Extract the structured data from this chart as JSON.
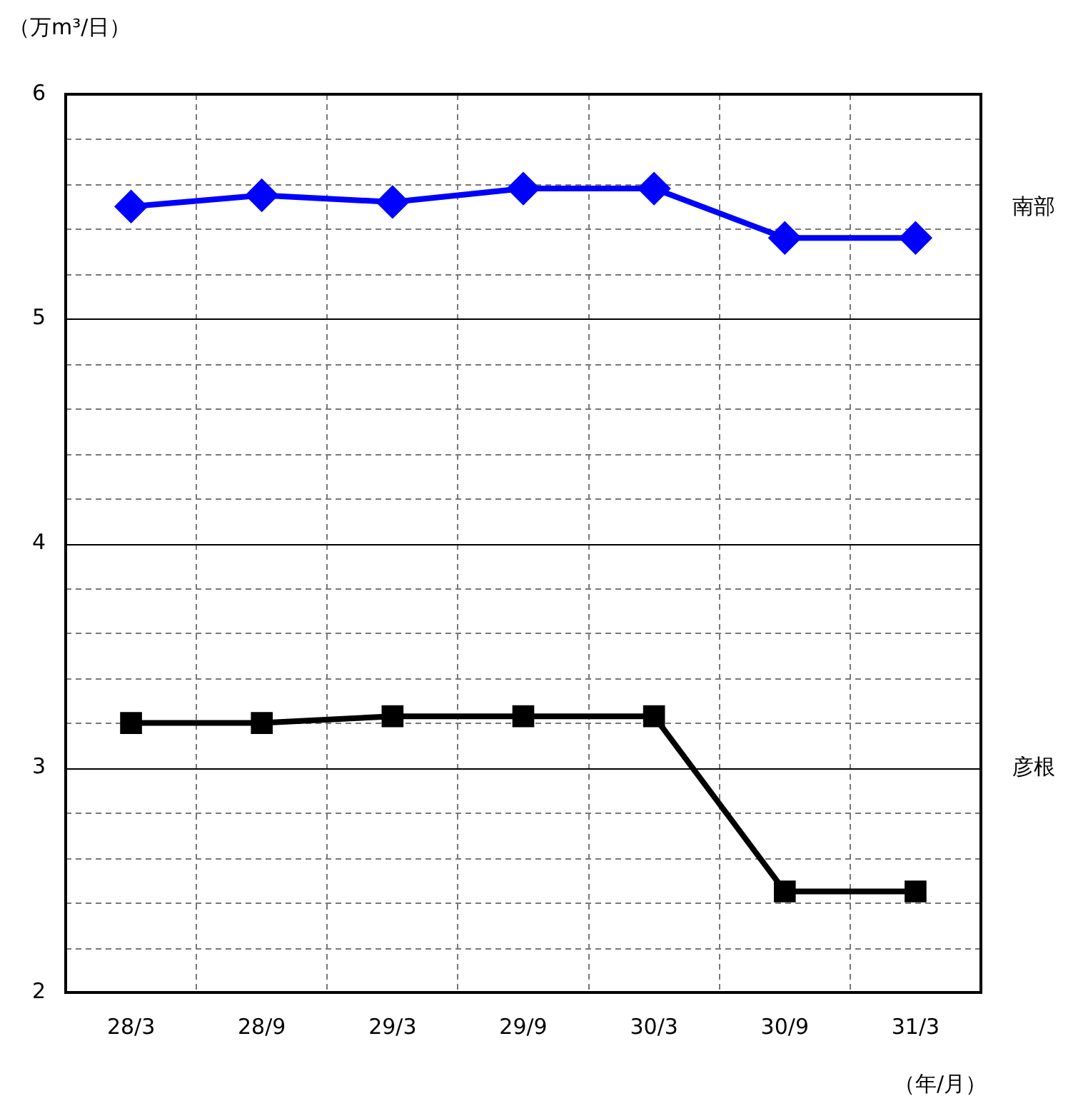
{
  "chart_data": {
    "type": "line",
    "ylabel": "（万m³/日）",
    "xlabel": "（年/月）",
    "categories": [
      "28/3",
      "28/9",
      "29/3",
      "29/9",
      "30/3",
      "30/9",
      "31/3"
    ],
    "series": [
      {
        "name": "南部",
        "color": "#0000ff",
        "marker": "diamond",
        "values": [
          5.5,
          5.55,
          5.52,
          5.58,
          5.58,
          5.36,
          5.36
        ]
      },
      {
        "name": "彦根",
        "color": "#000000",
        "marker": "square",
        "values": [
          3.2,
          3.2,
          3.23,
          3.23,
          3.23,
          2.45,
          2.45
        ]
      }
    ],
    "ylim": [
      2,
      6
    ],
    "yticks": [
      2,
      {
        "value": 2.2,
        "label": null
      },
      {
        "value": 2.4,
        "label": null
      },
      {
        "value": 2.6,
        "label": null
      },
      {
        "value": 2.8,
        "label": null
      },
      3,
      {
        "value": 3.2,
        "label": null
      },
      {
        "value": 3.4,
        "label": null
      },
      {
        "value": 3.6,
        "label": null
      },
      {
        "value": 3.8,
        "label": null
      },
      4,
      {
        "value": 4.2,
        "label": null
      },
      {
        "value": 4.4,
        "label": null
      },
      {
        "value": 4.6,
        "label": null
      },
      {
        "value": 4.8,
        "label": null
      },
      5,
      {
        "value": 5.2,
        "label": null
      },
      {
        "value": 5.4,
        "label": null
      },
      {
        "value": 5.6,
        "label": null
      },
      {
        "value": 5.8,
        "label": null
      },
      6
    ],
    "grid": true,
    "legend": false,
    "line_style": "solid"
  }
}
